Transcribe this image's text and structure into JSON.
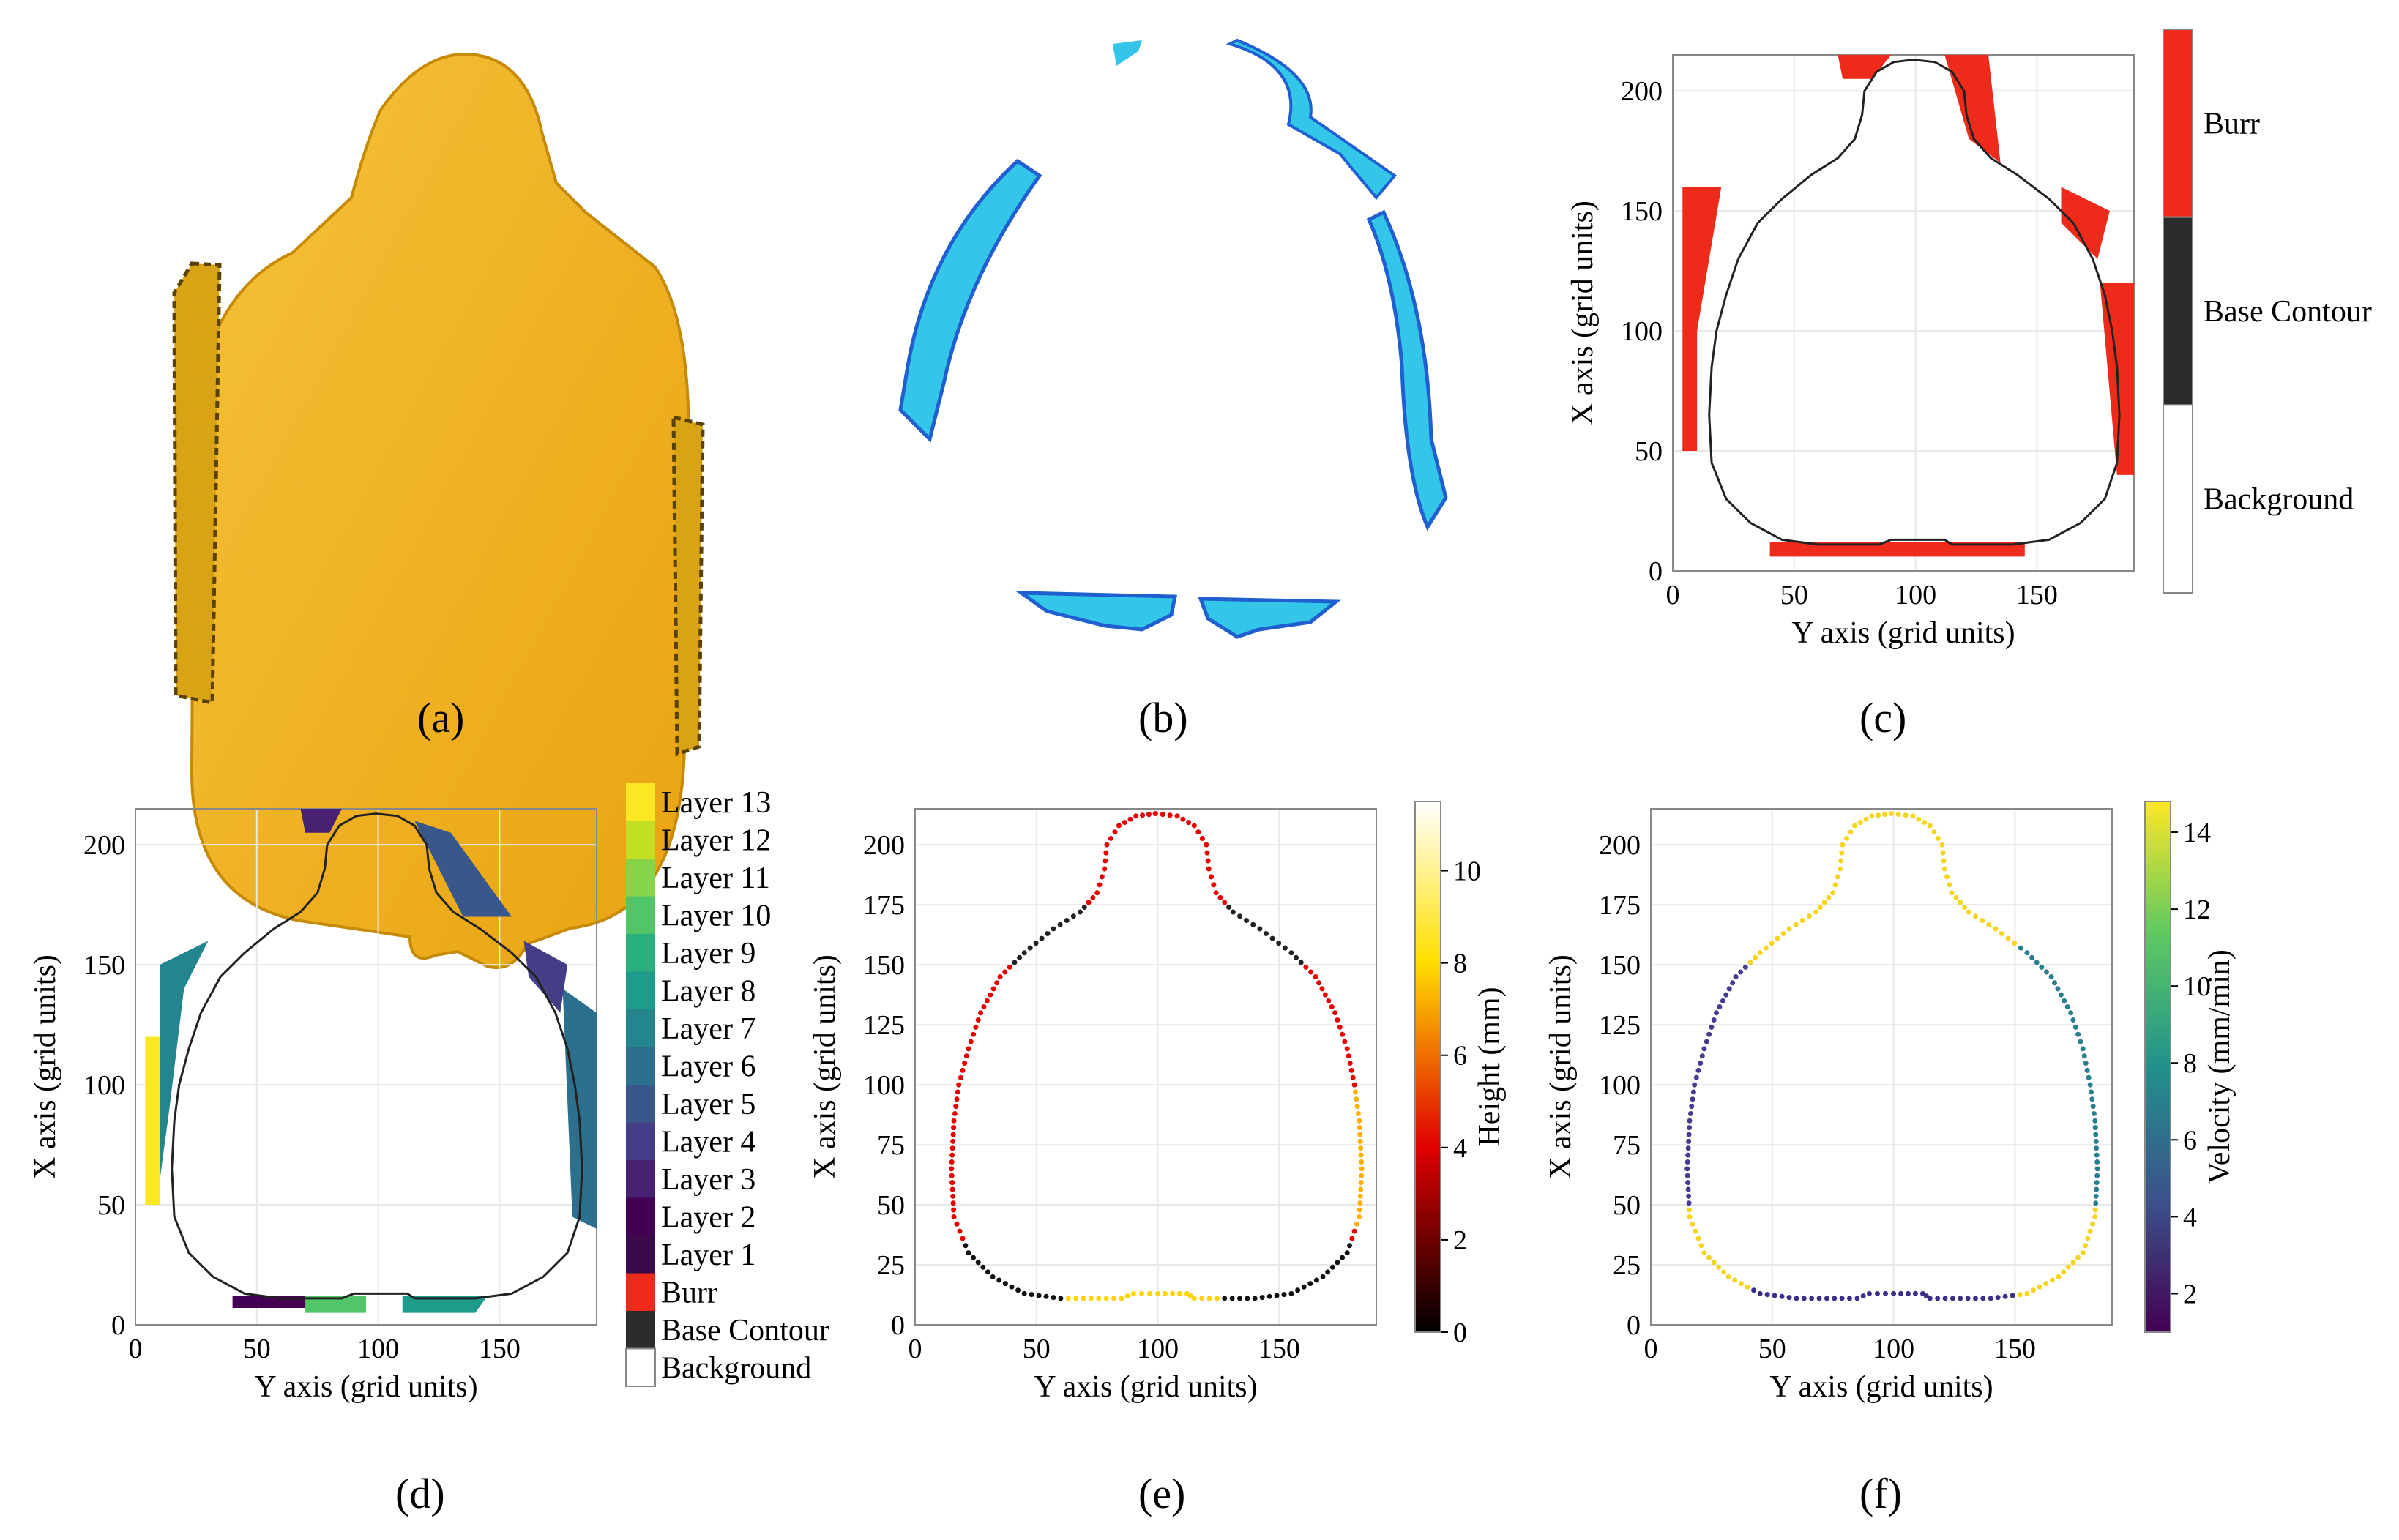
{
  "figure": {
    "captions": [
      "(a)",
      "(b)",
      "(c)",
      "(d)",
      "(e)",
      "(f)"
    ],
    "panel_a": {
      "description_icon": "3d-part-render-icon",
      "color": "#f2b11e"
    },
    "panel_b": {
      "description_icon": "burr-point-cloud-icon"
    }
  },
  "chart_data": [
    {
      "panel": "c",
      "type": "heatmap",
      "xlabel": "Y axis (grid units)",
      "ylabel": "X axis (grid units)",
      "xlim": [
        0,
        190
      ],
      "ylim": [
        0,
        215
      ],
      "xticks": [
        0,
        50,
        100,
        150
      ],
      "yticks": [
        0,
        50,
        100,
        150,
        200
      ],
      "legend": {
        "kind": "categorical",
        "entries": [
          {
            "label": "Burr",
            "color": "#ee2a1b"
          },
          {
            "label": "Base Contour",
            "color": "#2b2b2b"
          },
          {
            "label": "Background",
            "color": "#ffffff"
          }
        ]
      }
    },
    {
      "panel": "d",
      "type": "heatmap",
      "xlabel": "Y axis (grid units)",
      "ylabel": "X axis (grid units)",
      "xlim": [
        0,
        190
      ],
      "ylim": [
        0,
        215
      ],
      "xticks": [
        0,
        50,
        100,
        150
      ],
      "yticks": [
        0,
        50,
        100,
        150,
        200
      ],
      "legend": {
        "kind": "categorical",
        "entries": [
          {
            "label": "Layer 13",
            "color": "#fde725"
          },
          {
            "label": "Layer 12",
            "color": "#c2df23"
          },
          {
            "label": "Layer 11",
            "color": "#86d549"
          },
          {
            "label": "Layer 10",
            "color": "#52c569"
          },
          {
            "label": "Layer 9",
            "color": "#2ab07f"
          },
          {
            "label": "Layer 8",
            "color": "#1e9b8a"
          },
          {
            "label": "Layer 7",
            "color": "#25858e"
          },
          {
            "label": "Layer 6",
            "color": "#2d708e"
          },
          {
            "label": "Layer 5",
            "color": "#38588c"
          },
          {
            "label": "Layer 4",
            "color": "#433e85"
          },
          {
            "label": "Layer 3",
            "color": "#482173"
          },
          {
            "label": "Layer 2",
            "color": "#440154"
          },
          {
            "label": "Layer 1",
            "color": "#3a0a4a"
          },
          {
            "label": "Burr",
            "color": "#ee2a1b"
          },
          {
            "label": "Base Contour",
            "color": "#2b2b2b"
          },
          {
            "label": "Background",
            "color": "#ffffff"
          }
        ]
      }
    },
    {
      "panel": "e",
      "type": "scatter",
      "xlabel": "Y axis (grid units)",
      "ylabel": "X axis (grid units)",
      "xlim": [
        0,
        190
      ],
      "ylim": [
        0,
        215
      ],
      "xticks": [
        0,
        50,
        100,
        150
      ],
      "yticks": [
        0,
        25,
        50,
        75,
        100,
        125,
        150,
        175,
        200
      ],
      "colorbar": {
        "label": "Height (mm)",
        "colormap": "hot",
        "range": [
          0,
          11.5
        ],
        "ticks": [
          0,
          2,
          4,
          6,
          8,
          10
        ]
      }
    },
    {
      "panel": "f",
      "type": "scatter",
      "xlabel": "Y axis (grid units)",
      "ylabel": "X axis (grid units)",
      "xlim": [
        0,
        190
      ],
      "ylim": [
        0,
        215
      ],
      "xticks": [
        0,
        50,
        100,
        150
      ],
      "yticks": [
        0,
        25,
        50,
        75,
        100,
        125,
        150,
        175,
        200
      ],
      "colorbar": {
        "label": "Velocity (mm/min)",
        "colormap": "viridis",
        "range": [
          1,
          14.8
        ],
        "ticks": [
          2,
          4,
          6,
          8,
          10,
          12,
          14
        ]
      }
    }
  ]
}
